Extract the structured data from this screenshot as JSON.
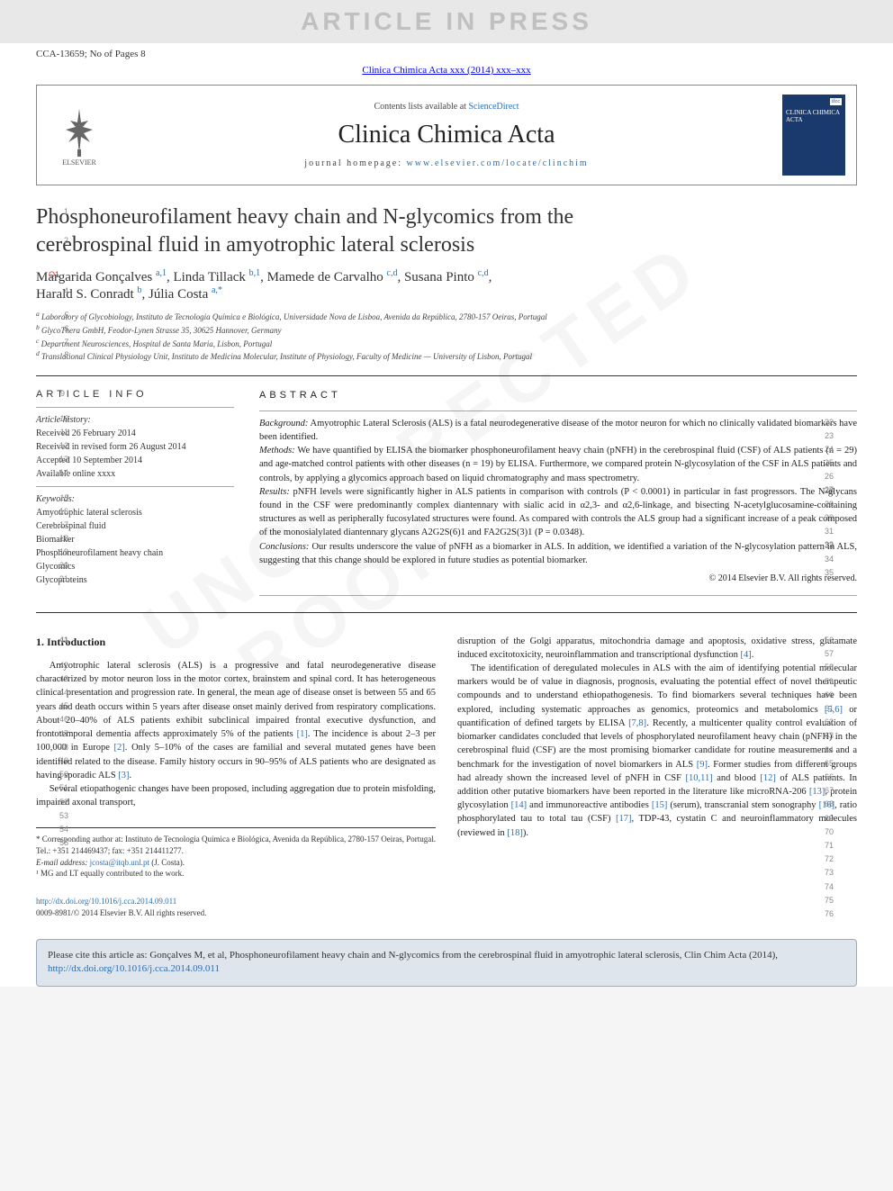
{
  "banner_text": "ARTICLE IN PRESS",
  "header": {
    "manuscript_id": "CCA-13659; No of Pages 8",
    "journal_ref": "Clinica Chimica Acta xxx (2014) xxx–xxx",
    "contents_line_prefix": "Contents lists available at ",
    "contents_link": "ScienceDirect",
    "journal_name": "Clinica Chimica Acta",
    "homepage_label": "journal homepage: ",
    "homepage_url": "www.elsevier.com/locate/clinchim",
    "elsevier_label": "ELSEVIER",
    "cover_text_top": "ifcc",
    "cover_text": "CLINICA CHIMICA ACTA"
  },
  "title_lines": [
    "Phosphoneurofilament heavy chain and N-glycomics from the",
    "cerebrospinal fluid in amyotrophic lateral sclerosis"
  ],
  "title_line_numbers": [
    "1",
    "2"
  ],
  "q_marker": "Q1",
  "authors_html": "Margarida Gonçalves <sup>a,1</sup>, Linda Tillack <sup>b,1</sup>, Mamede de Carvalho <sup>c,d</sup>, Susana Pinto <sup>c,d</sup>, Harald S. Conradt <sup>b</sup>, Júlia Costa <sup>a,*</sup>",
  "author_line_numbers": [
    "3",
    "4"
  ],
  "affiliations": [
    {
      "n": "5",
      "sup": "a",
      "text": "Laboratory of Glycobiology, Instituto de Tecnologia Química e Biológica, Universidade Nova de Lisboa, Avenida da República, 2780-157 Oeiras, Portugal"
    },
    {
      "n": "6",
      "sup": "b",
      "text": "GlycoThera GmbH, Feodor-Lynen Strasse 35, 30625 Hannover, Germany"
    },
    {
      "n": "7",
      "sup": "c",
      "text": "Department Neurosciences, Hospital de Santa Maria, Lisbon, Portugal"
    },
    {
      "n": "8",
      "sup": "d",
      "text": "Translational Clinical Physiology Unit, Instituto de Medicina Molecular, Institute of Physiology, Faculty of Medicine — University of Lisbon, Portugal"
    }
  ],
  "article_info": {
    "heading": "ARTICLE INFO",
    "history_n": "9",
    "history_label": "Article history:",
    "history_label_n": "10",
    "history": [
      {
        "n": "11",
        "text": "Received 26 February 2014"
      },
      {
        "n": "12",
        "text": "Received in revised form 26 August 2014"
      },
      {
        "n": "13",
        "text": "Accepted 10 September 2014"
      },
      {
        "n": "14",
        "text": "Available online xxxx"
      }
    ],
    "keywords_label": "Keywords:",
    "keywords_label_n": "15",
    "keywords": [
      {
        "n": "16",
        "text": "Amyotrophic lateral sclerosis"
      },
      {
        "n": "17",
        "text": "Cerebrospinal fluid"
      },
      {
        "n": "18",
        "text": "Biomarker"
      },
      {
        "n": "19",
        "text": "Phosphoneurofilament heavy chain"
      },
      {
        "n": "20",
        "text": "Glycomics"
      },
      {
        "n": "21",
        "text": "Glycoproteins"
      }
    ]
  },
  "abstract": {
    "heading": "ABSTRACT",
    "paras": [
      {
        "label": "Background:",
        "text": "Amyotrophic Lateral Sclerosis (ALS) is a fatal neurodegenerative disease of the motor neuron for which no clinically validated biomarkers have been identified.",
        "lines": [
          "22",
          "23"
        ]
      },
      {
        "label": "Methods:",
        "text": "We have quantified by ELISA the biomarker phosphoneurofilament heavy chain (pNFH) in the cerebrospinal fluid (CSF) of ALS patients (n = 29) and age-matched control patients with other diseases (n = 19) by ELISA. Furthermore, we compared protein N-glycosylation of the CSF in ALS patients and controls, by applying a glycomics approach based on liquid chromatography and mass spectrometry.",
        "lines": [
          "24",
          "25",
          "26",
          "27"
        ]
      },
      {
        "label": "Results:",
        "text": "pNFH levels were significantly higher in ALS patients in comparison with controls (P < 0.0001) in particular in fast progressors. The N-glycans found in the CSF were predominantly complex diantennary with sialic acid in α2,3- and α2,6-linkage, and bisecting N-acetylglucosamine-containing structures as well as peripherally fucosylated structures were found. As compared with controls the ALS group had a significant increase of a peak composed of the monosialylated diantennary glycans A2G2S(6)1 and FA2G2S(3)1 (P = 0.0348).",
        "lines": [
          "28",
          "29",
          "30",
          "31",
          "32"
        ]
      },
      {
        "label": "Conclusions:",
        "text": "Our results underscore the value of pNFH as a biomarker in ALS. In addition, we identified a variation of the N-glycosylation pattern in ALS, suggesting that this change should be explored in future studies as potential biomarker.",
        "lines": [
          "33",
          "34",
          "35"
        ]
      }
    ],
    "copyright": "© 2014 Elsevier B.V. All rights reserved.",
    "extra_numbers": [
      "36",
      "38",
      "39"
    ]
  },
  "section1": {
    "number_n": "41",
    "heading": "1. Introduction",
    "col_left_lines": [
      "42",
      "43",
      "44",
      "45",
      "46",
      "47",
      "48",
      "49",
      "50",
      "51",
      "52",
      "53",
      "54",
      "55"
    ],
    "col_left_p1": "Amyotrophic lateral sclerosis (ALS) is a progressive and fatal neurodegenerative disease characterized by motor neuron loss in the motor cortex, brainstem and spinal cord. It has heterogeneous clinical presentation and progression rate. In general, the mean age of disease onset is between 55 and 65 years and death occurs within 5 years after disease onset mainly derived from respiratory complications. About 20–40% of ALS patients exhibit subclinical impaired frontal executive dysfunction, and frontotemporal dementia affects approximately 5% of the patients ",
    "ref1": "[1]",
    "col_left_p1b": ". The incidence is about 2–3 per 100,000 in Europe ",
    "ref2": "[2]",
    "col_left_p1c": ". Only 5–10% of the cases are familial and several mutated genes have been identified related to the disease. Family history occurs in 90–95% of ALS patients who are designated as having sporadic ALS ",
    "ref3": "[3]",
    "col_left_p1d": ".",
    "col_left_p2": "Several etiopathogenic changes have been proposed, including aggregation due to protein misfolding, impaired axonal transport,",
    "col_right_lines_a": [
      "56",
      "57",
      "58"
    ],
    "col_right_p1": "disruption of the Golgi apparatus, mitochondria damage and apoptosis, oxidative stress, glutamate induced excitotoxicity, neuroinflammation and transcriptional dysfunction ",
    "ref4": "[4]",
    "col_right_p1b": ".",
    "col_right_lines_b": [
      "59",
      "60",
      "61",
      "62",
      "63",
      "64",
      "65",
      "66",
      "67",
      "68",
      "69",
      "70",
      "71",
      "72",
      "73",
      "74",
      "75",
      "76"
    ],
    "col_right_p2a": "The identification of deregulated molecules in ALS with the aim of identifying potential molecular markers would be of value in diagnosis, prognosis, evaluating the potential effect of novel therapeutic compounds and to understand ethiopathogenesis. To find biomarkers several techniques have been explored, including systematic approaches as genomics, proteomics and metabolomics ",
    "ref56": "[5,6]",
    "col_right_p2b": " or quantification of defined targets by ELISA ",
    "ref78": "[7,8]",
    "col_right_p2c": ". Recently, a multicenter quality control evaluation of biomarker candidates concluded that levels of phosphorylated neurofilament heavy chain (pNFH) in the cerebrospinal fluid (CSF) are the most promising biomarker candidate for routine measurements and a benchmark for the investigation of novel biomarkers in ALS ",
    "ref9": "[9]",
    "col_right_p2d": ". Former studies from different groups had already shown the increased level of pNFH in CSF ",
    "ref1011": "[10,11]",
    "col_right_p2e": " and blood ",
    "ref12": "[12]",
    "col_right_p2f": " of ALS patients. In addition other putative biomarkers have been reported in the literature like microRNA-206 ",
    "ref13": "[13]",
    "col_right_p2g": ", protein glycosylation ",
    "ref14": "[14]",
    "col_right_p2h": " and immunoreactive antibodies ",
    "ref15": "[15]",
    "col_right_p2i": " (serum), transcranial stem sonography ",
    "ref16": "[16]",
    "col_right_p2j": ", ratio phosphorylated tau to total tau (CSF) ",
    "ref17": "[17]",
    "col_right_p2k": ", TDP-43, cystatin C and neuroinflammatory molecules (reviewed in ",
    "ref18": "[18]",
    "col_right_p2l": ")."
  },
  "footnotes": {
    "corr": "* Corresponding author at: Instituto de Tecnologia Química e Biológica, Avenida da República, 2780-157 Oeiras, Portugal. Tel.: +351 214469437; fax: +351 214411277.",
    "email_label": "E-mail address: ",
    "email": "jcosta@itqb.unl.pt",
    "email_suffix": " (J. Costa).",
    "contrib": "¹ MG and LT equally contributed to the work."
  },
  "doi": {
    "url": "http://dx.doi.org/10.1016/j.cca.2014.09.011",
    "issn_line": "0009-8981/© 2014 Elsevier B.V. All rights reserved."
  },
  "cite_box": {
    "prefix": "Please cite this article as: Gonçalves M, et al, Phosphoneurofilament heavy chain and N-glycomics from the cerebrospinal fluid in amyotrophic lateral sclerosis, Clin Chim Acta (2014), ",
    "url": "http://dx.doi.org/10.1016/j.cca.2014.09.011"
  },
  "watermark_diag": "UNCORRECTED PROOF"
}
